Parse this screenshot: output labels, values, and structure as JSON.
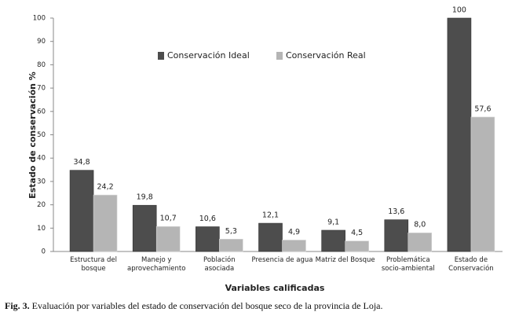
{
  "chart_data": {
    "type": "bar",
    "y_label": "Estado de conservación  %",
    "x_label": "Variables calificadas",
    "categories": [
      "Estructura del bosque",
      "Manejo y aprovechamiento",
      "Población asociada",
      "Presencia de agua",
      "Matriz del Bosque",
      "Problemática socio-ambiental",
      "Estado de Conservación"
    ],
    "series": [
      {
        "name": "Conservación Ideal",
        "color": "#4d4d4d",
        "values": [
          34.8,
          19.8,
          10.6,
          12.1,
          9.1,
          13.6,
          100
        ],
        "value_labels": [
          "34,8",
          "19,8",
          "10,6",
          "12,1",
          "9,1",
          "13,6",
          "100"
        ]
      },
      {
        "name": "Conservación Real",
        "color": "#b5b5b5",
        "values": [
          24.2,
          10.7,
          5.3,
          4.9,
          4.5,
          8.0,
          57.6
        ],
        "value_labels": [
          "24,2",
          "10,7",
          "5,3",
          "4,9",
          "4,5",
          "8,0",
          "57,6"
        ]
      }
    ],
    "ylim": [
      0,
      100
    ],
    "yticks": [
      0,
      10,
      20,
      30,
      40,
      50,
      60,
      70,
      80,
      90,
      100
    ]
  },
  "caption": {
    "label": "Fig. 3.",
    "text": " Evaluación por variables del estado de conservación del bosque seco de la provincia de Loja."
  }
}
